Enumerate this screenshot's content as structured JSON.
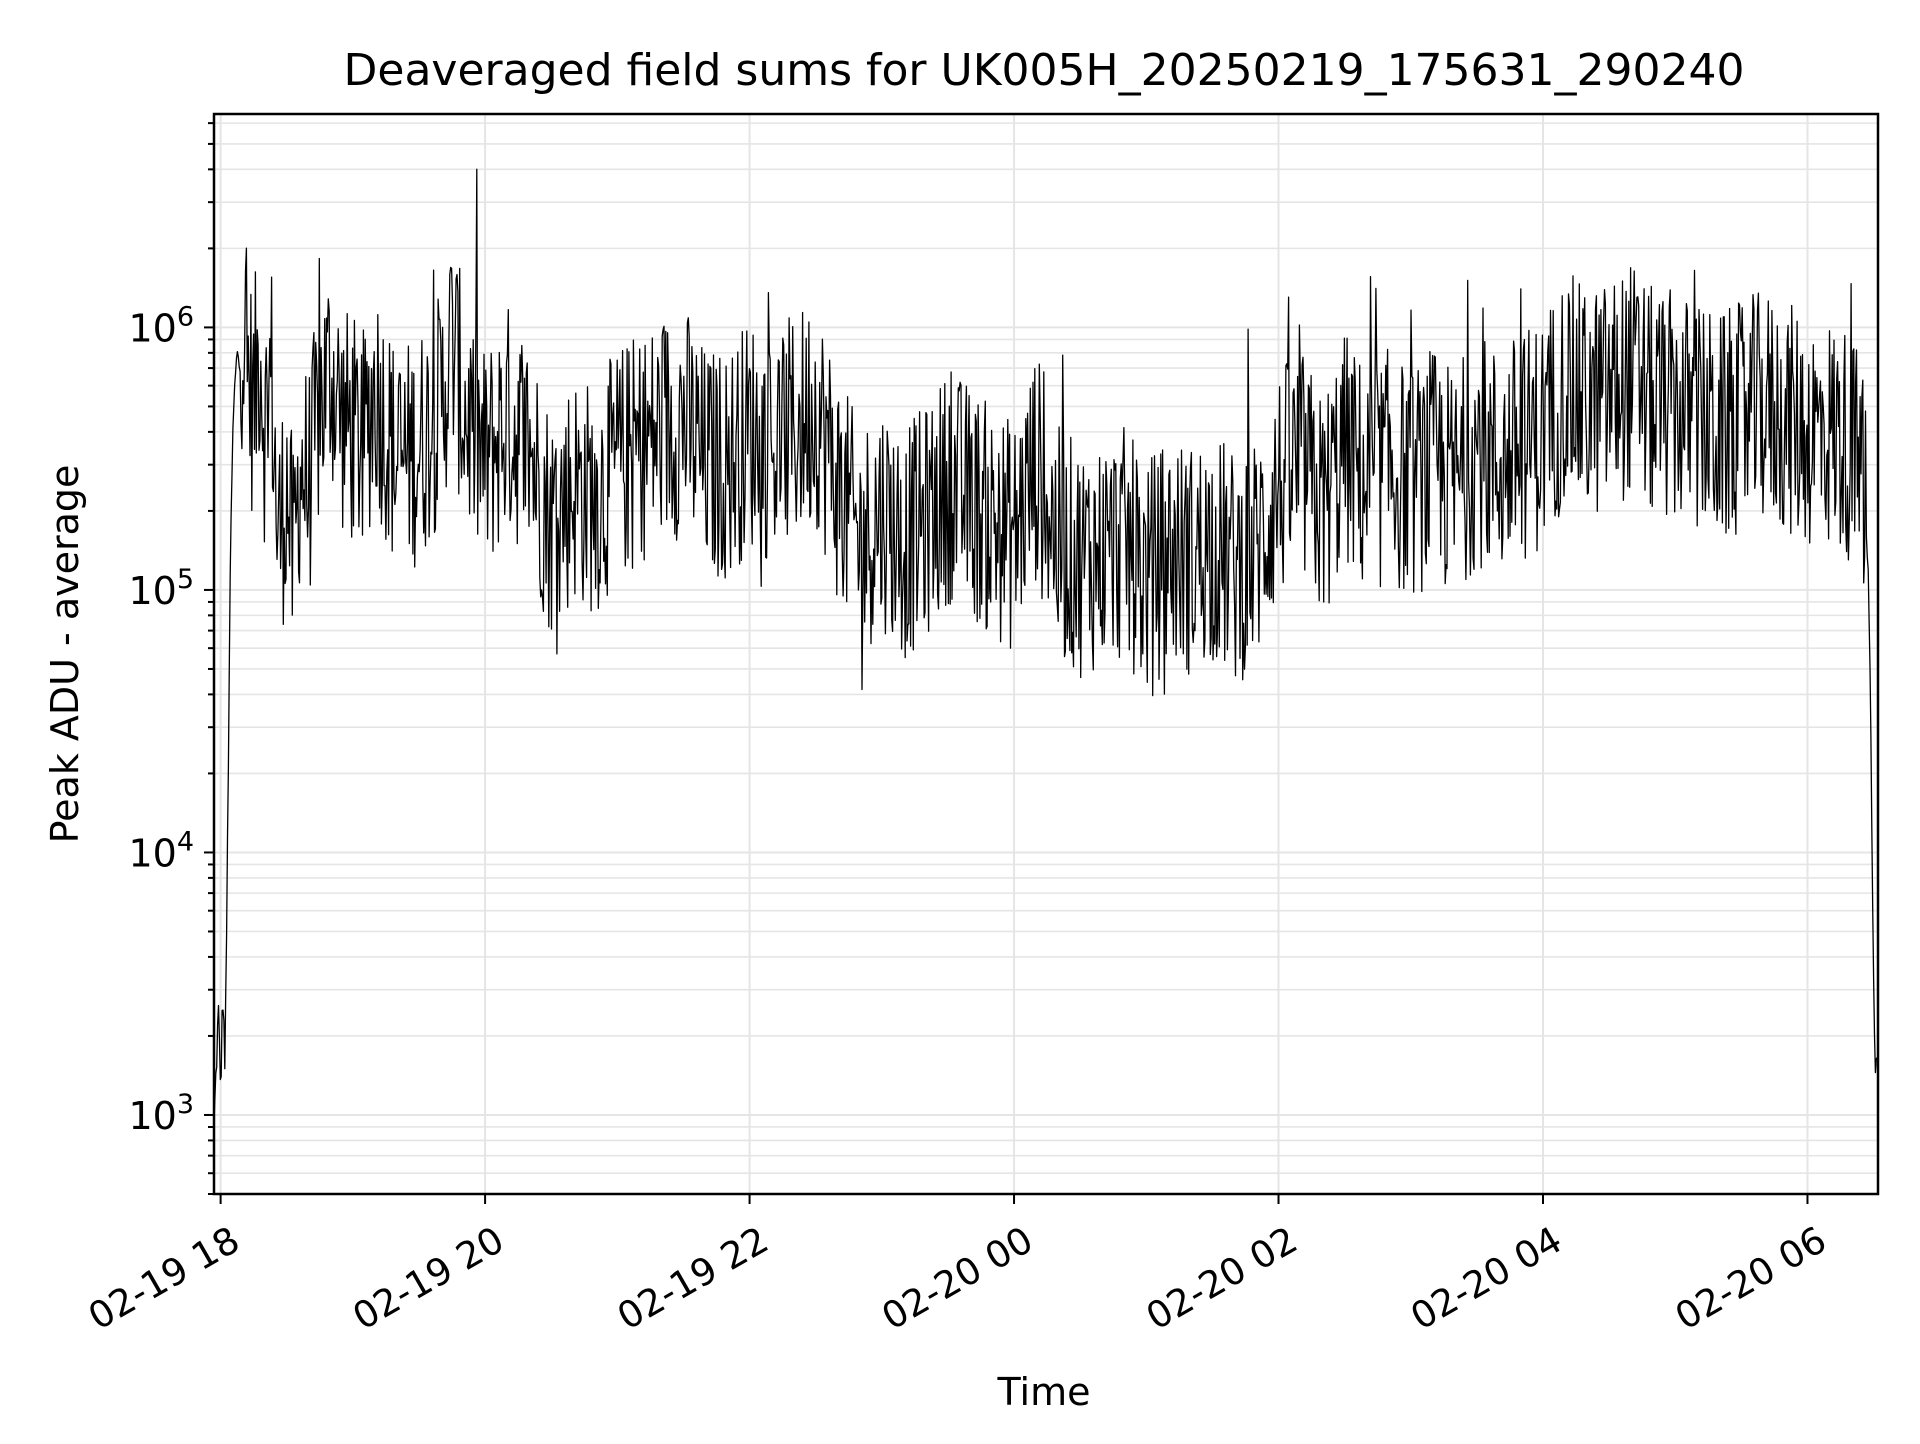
{
  "chart_data": {
    "type": "line",
    "title": "Deaveraged field sums for UK005H_20250219_175631_290240",
    "xlabel": "Time",
    "ylabel": "Peak ADU - average",
    "yscale": "log",
    "ylim": [
      500,
      6500000
    ],
    "xlim": [
      "2025-02-19 17:57",
      "2025-02-20 06:32"
    ],
    "grid": true,
    "line_color": "#000000",
    "grid_color": "#e5e5e5",
    "x_ticks": [
      {
        "value": "2025-02-19 18:00",
        "label": "02-19 18"
      },
      {
        "value": "2025-02-19 20:00",
        "label": "02-19 20"
      },
      {
        "value": "2025-02-19 22:00",
        "label": "02-19 22"
      },
      {
        "value": "2025-02-20 00:00",
        "label": "02-20 00"
      },
      {
        "value": "2025-02-20 02:00",
        "label": "02-20 02"
      },
      {
        "value": "2025-02-20 04:00",
        "label": "02-20 04"
      },
      {
        "value": "2025-02-20 06:00",
        "label": "02-20 06"
      }
    ],
    "y_ticks": [
      {
        "value": 1000,
        "base": "10",
        "exp": "3"
      },
      {
        "value": 10000,
        "base": "10",
        "exp": "4"
      },
      {
        "value": 100000,
        "base": "10",
        "exp": "5"
      },
      {
        "value": 1000000,
        "base": "10",
        "exp": "6"
      }
    ],
    "series": [
      {
        "x": [
          "2025-02-19 17:57",
          "2025-02-19 17:58",
          "2025-02-19 17:59",
          "2025-02-19 18:00",
          "2025-02-19 18:01",
          "2025-02-19 18:02",
          "2025-02-19 18:03",
          "2025-02-19 18:04",
          "2025-02-19 18:05",
          "2025-02-19 18:06",
          "2025-02-19 18:07",
          "2025-02-19 18:08",
          "2025-02-19 18:10",
          "2025-02-19 18:12",
          "2025-02-19 18:15",
          "2025-02-19 18:18",
          "2025-02-19 18:20",
          "2025-02-19 18:23",
          "2025-02-19 18:26",
          "2025-02-19 18:30",
          "2025-02-19 18:33",
          "2025-02-19 18:36",
          "2025-02-19 18:40",
          "2025-02-19 18:45",
          "2025-02-19 18:50",
          "2025-02-19 18:55",
          "2025-02-19 19:00",
          "2025-02-19 19:05",
          "2025-02-19 19:10",
          "2025-02-19 19:20",
          "2025-02-19 19:30",
          "2025-02-19 19:40",
          "2025-02-19 19:45",
          "2025-02-19 19:50",
          "2025-02-19 20:00",
          "2025-02-19 20:10",
          "2025-02-19 20:20",
          "2025-02-19 20:30",
          "2025-02-19 20:40",
          "2025-02-19 20:50",
          "2025-02-19 21:00",
          "2025-02-19 21:10",
          "2025-02-19 21:20",
          "2025-02-19 21:30",
          "2025-02-19 21:40",
          "2025-02-19 21:50",
          "2025-02-19 22:00",
          "2025-02-19 22:10",
          "2025-02-19 22:20",
          "2025-02-19 22:30",
          "2025-02-19 22:40",
          "2025-02-19 22:50",
          "2025-02-19 23:00",
          "2025-02-19 23:10",
          "2025-02-19 23:20",
          "2025-02-19 23:30",
          "2025-02-19 23:40",
          "2025-02-19 23:50",
          "2025-02-20 00:00",
          "2025-02-20 00:10",
          "2025-02-20 00:20",
          "2025-02-20 00:30",
          "2025-02-20 00:40",
          "2025-02-20 00:50",
          "2025-02-20 01:00",
          "2025-02-20 01:10",
          "2025-02-20 01:20",
          "2025-02-20 01:30",
          "2025-02-20 01:40",
          "2025-02-20 01:50",
          "2025-02-20 02:00",
          "2025-02-20 02:10",
          "2025-02-20 02:20",
          "2025-02-20 02:30",
          "2025-02-20 02:40",
          "2025-02-20 02:50",
          "2025-02-20 03:00",
          "2025-02-20 03:10",
          "2025-02-20 03:20",
          "2025-02-20 03:30",
          "2025-02-20 03:40",
          "2025-02-20 03:50",
          "2025-02-20 04:00",
          "2025-02-20 04:10",
          "2025-02-20 04:20",
          "2025-02-20 04:30",
          "2025-02-20 04:40",
          "2025-02-20 04:50",
          "2025-02-20 05:00",
          "2025-02-20 05:10",
          "2025-02-20 05:20",
          "2025-02-20 05:30",
          "2025-02-20 05:40",
          "2025-02-20 05:50",
          "2025-02-20 06:00",
          "2025-02-20 06:10",
          "2025-02-20 06:20",
          "2025-02-20 06:26",
          "2025-02-20 06:28",
          "2025-02-20 06:29",
          "2025-02-20 06:30",
          "2025-02-20 06:31",
          "2025-02-20 06:32"
        ],
        "y": [
          900,
          1500,
          2500,
          1200,
          3000,
          1500,
          8000,
          60000,
          250000,
          500000,
          700000,
          800000,
          1000000,
          700000,
          500000,
          900000,
          400000,
          700000,
          150000,
          250000,
          120000,
          300000,
          250000,
          500000,
          700000,
          450000,
          400000,
          350000,
          600000,
          300000,
          350000,
          500000,
          900000,
          500000,
          300000,
          450000,
          350000,
          180000,
          250000,
          220000,
          300000,
          350000,
          400000,
          450000,
          300000,
          300000,
          400000,
          350000,
          400000,
          500000,
          250000,
          150000,
          200000,
          150000,
          180000,
          250000,
          220000,
          180000,
          160000,
          300000,
          150000,
          130000,
          140000,
          150000,
          110000,
          140000,
          130000,
          150000,
          120000,
          140000,
          250000,
          300000,
          200000,
          350000,
          250000,
          300000,
          250000,
          300000,
          250000,
          350000,
          300000,
          350000,
          400000,
          600000,
          500000,
          550000,
          650000,
          500000,
          500000,
          450000,
          400000,
          450000,
          500000,
          450000,
          400000,
          400000,
          350000,
          250000,
          80000,
          20000,
          3000,
          1300,
          2000
        ]
      }
    ]
  }
}
